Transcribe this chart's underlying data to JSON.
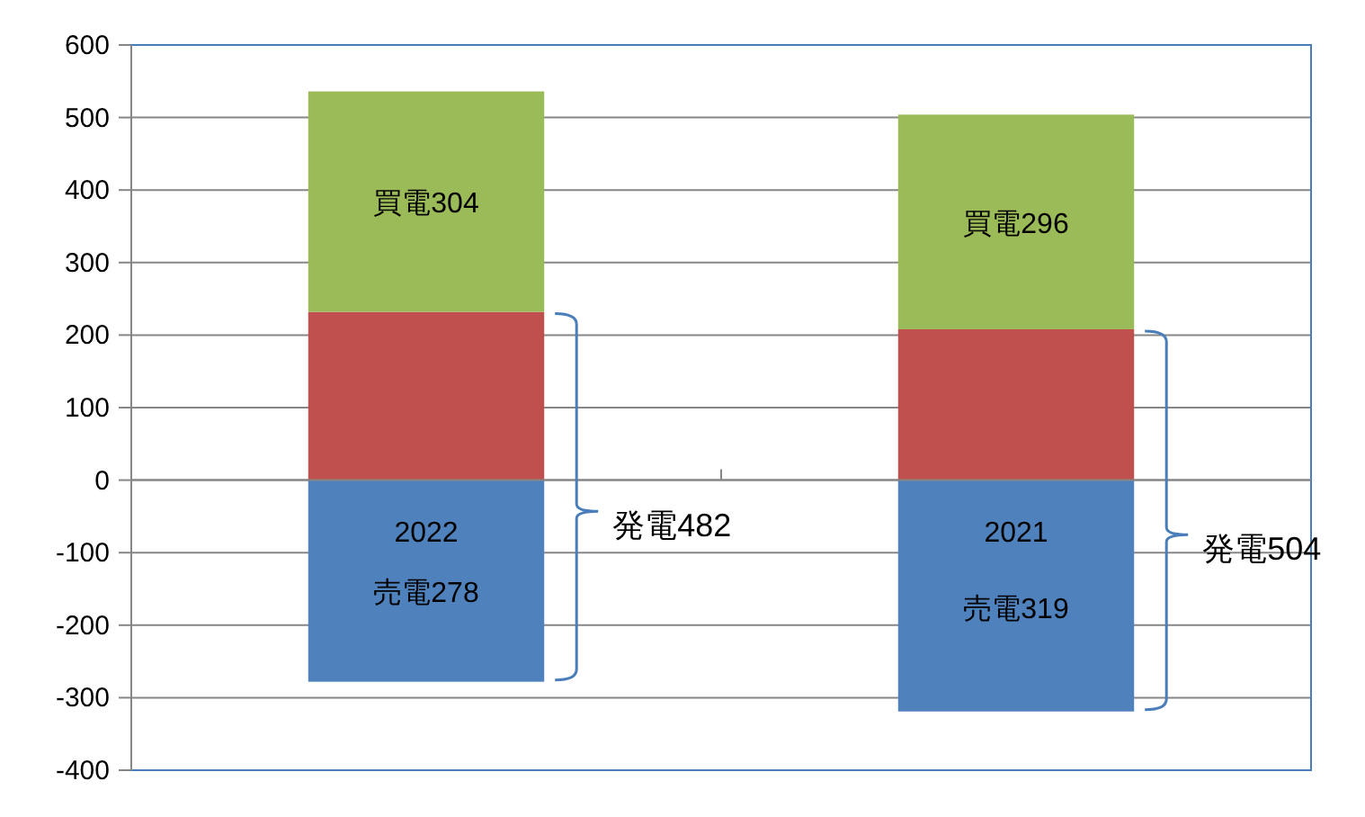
{
  "chart_data": {
    "type": "bar",
    "stacked": true,
    "categories": [
      "2022",
      "2021"
    ],
    "series": [
      {
        "color": "#4f81bd",
        "values": [
          -278,
          -319
        ],
        "value_labels": [
          "売電278",
          "売電319"
        ]
      },
      {
        "color": "#c0504d",
        "values": [
          232,
          208
        ]
      },
      {
        "color": "#9bbb59",
        "values": [
          304,
          296
        ],
        "value_labels": [
          "買電304",
          "買電296"
        ]
      }
    ],
    "ylim": [
      -400,
      600
    ],
    "yticks": [
      -400,
      -300,
      -200,
      -100,
      0,
      100,
      200,
      300,
      400,
      500,
      600
    ],
    "grid": "y",
    "annotations": [
      "発電482",
      "発電504"
    ]
  }
}
